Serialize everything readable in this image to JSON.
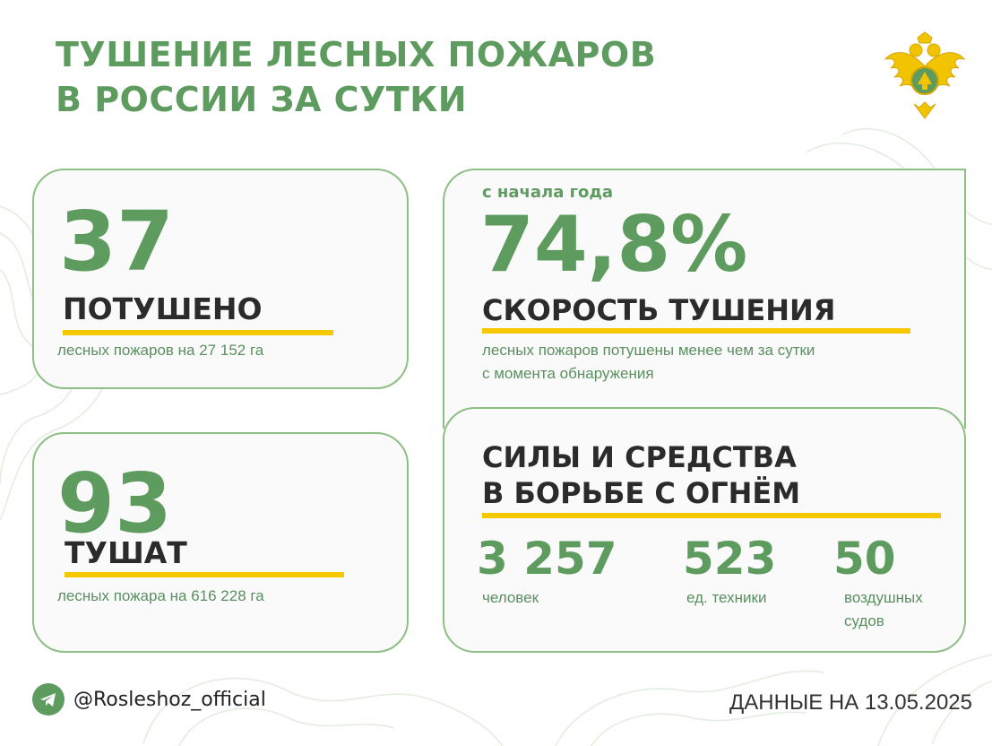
{
  "title": {
    "line1": "ТУШЕНИЕ ЛЕСНЫХ ПОЖАРОВ",
    "line2": "В РОССИИ ЗА СУТКИ"
  },
  "colors": {
    "green": "#5e9b5f",
    "border": "#8dbf84",
    "yellow": "#f6c800",
    "dark": "#2b2b2b"
  },
  "emblem": {
    "icon": "double-headed-eagle-emblem-icon"
  },
  "extinguished": {
    "number": "37",
    "label": "ПОТУШЕНО",
    "description": "лесных пожаров на 27 152 га"
  },
  "active": {
    "number": "93",
    "label": "ТУШАТ",
    "description": "лесных пожара на 616 228 га"
  },
  "speed": {
    "kicker": "с начала года",
    "value": "74,8%",
    "label": "СКОРОСТЬ ТУШЕНИЯ",
    "description_line1": "лесных пожаров потушены менее чем за сутки",
    "description_line2": "с момента обнаружения"
  },
  "forces": {
    "title_line1": "СИЛЫ И СРЕДСТВА",
    "title_line2": "В БОРЬБЕ С ОГНЁМ",
    "people": {
      "value": "3 257",
      "label": "человек"
    },
    "vehicles": {
      "value": "523",
      "label": "ед. техники"
    },
    "aircraft": {
      "value": "50",
      "label_line1": "воздушных",
      "label_line2": "судов"
    }
  },
  "footer": {
    "icon": "telegram-icon",
    "handle": "@Rosleshoz_official",
    "date": "ДАННЫЕ НА 13.05.2025"
  }
}
